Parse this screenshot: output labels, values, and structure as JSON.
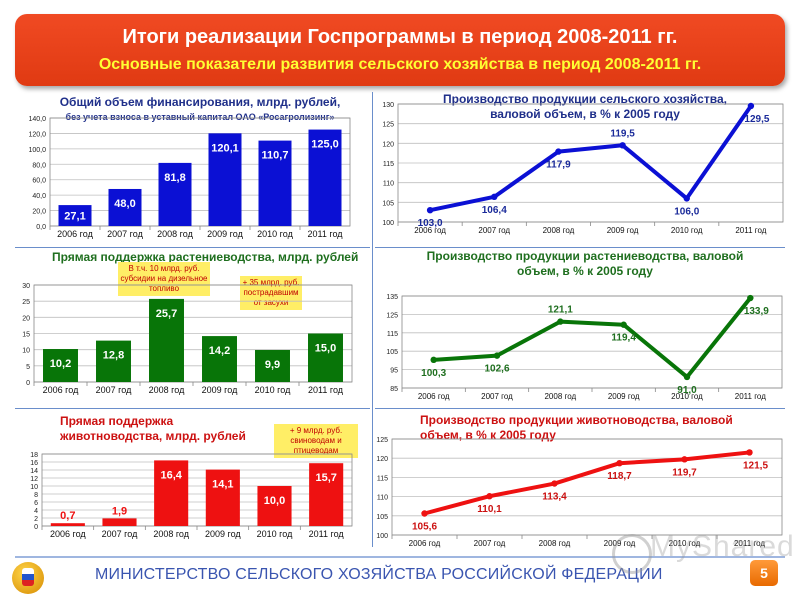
{
  "header": {
    "title": "Итоги реализации Госпрограммы в период 2008-2011 гг.",
    "subtitle": "Основные показатели развития сельского хозяйства в период 2008-2011 гг."
  },
  "footer": {
    "ministry": "МИНИСТЕРСТВО СЕЛЬСКОГО ХОЗЯЙСТВА РОССИЙСКОЙ ФЕДЕРАЦИИ",
    "page_number": "5",
    "watermark": "MyShared"
  },
  "colors": {
    "banner": "#e8431a",
    "blue": "#0b10d4",
    "green": "#087508",
    "red": "#ee1111"
  },
  "panels": {
    "financing": {
      "title": "Общий объем финансирования, млрд. рублей,",
      "subtitle": "без учета взноса в уставный капитал ОАО «Росагролизинг»"
    },
    "agri_output": {
      "title": "Производство продукции сельского хозяйства, валовой объем, в % к 2005 году"
    },
    "crop_support": {
      "title": "Прямая поддержка растениеводства, млрд. рублей",
      "note1": "В т.ч. 10 млрд. руб. субсидии на дизельное топливо",
      "note2": "+ 35 млрд. руб. пострадавшим от засухи"
    },
    "crop_output": {
      "title": "Производство продукции растениеводства, валовой объем, в % к 2005 году"
    },
    "livestock_support": {
      "title": "Прямая поддержка животноводства, млрд. рублей",
      "note1": "+ 9 млрд. руб. свиноводам и птицеводам"
    },
    "livestock_output": {
      "title": "Производство продукции животноводства, валовой объем, в % к 2005 году"
    }
  },
  "chart_data": [
    {
      "id": "financing",
      "type": "bar",
      "categories": [
        "2006 год",
        "2007 год",
        "2008 год",
        "2009 год",
        "2010 год",
        "2011 год"
      ],
      "values": [
        27.1,
        48.0,
        81.8,
        120.1,
        110.7,
        125.0
      ],
      "value_labels": [
        "27,1",
        "48,0",
        "81,8",
        "120,1",
        "110,7",
        "125,0"
      ],
      "ylim": [
        0,
        140
      ],
      "yticks": [
        "0,0",
        "20,0",
        "40,0",
        "60,0",
        "80,0",
        "100,0",
        "120,0",
        "140,0"
      ],
      "color": "#0b10d4",
      "label_color": "#ffffff",
      "grid": true
    },
    {
      "id": "agri_output",
      "type": "line",
      "categories": [
        "2006 год",
        "2007 год",
        "2008 год",
        "2009 год",
        "2010 год",
        "2011 год"
      ],
      "values": [
        103.0,
        106.4,
        117.9,
        119.5,
        106.0,
        129.5
      ],
      "value_labels": [
        "103,0",
        "106,4",
        "117,9",
        "119,5",
        "106,0",
        "129,5"
      ],
      "ylim": [
        100,
        130
      ],
      "yticks": [
        "100",
        "105",
        "110",
        "115",
        "120",
        "125",
        "130"
      ],
      "color": "#0b10d4",
      "label_color": "#1a2a9a",
      "grid": true
    },
    {
      "id": "crop_support",
      "type": "bar",
      "categories": [
        "2006 год",
        "2007 год",
        "2008 год",
        "2009 год",
        "2010 год",
        "2011 год"
      ],
      "values": [
        10.2,
        12.8,
        25.7,
        14.2,
        9.9,
        15.0
      ],
      "value_labels": [
        "10,2",
        "12,8",
        "25,7",
        "14,2",
        "9,9",
        "15,0"
      ],
      "ylim": [
        0,
        30
      ],
      "yticks": [
        "0",
        "5",
        "10",
        "15",
        "20",
        "25",
        "30"
      ],
      "color": "#087508",
      "label_color": "#ffffff",
      "grid": true
    },
    {
      "id": "crop_output",
      "type": "line",
      "categories": [
        "2006 год",
        "2007 год",
        "2008 год",
        "2009 год",
        "2010 год",
        "2011 год"
      ],
      "values": [
        100.3,
        102.6,
        121.1,
        119.4,
        91.0,
        133.9
      ],
      "value_labels": [
        "100,3",
        "102,6",
        "121,1",
        "119,4",
        "91,0",
        "133,9"
      ],
      "ylim": [
        85,
        135
      ],
      "yticks": [
        "85",
        "95",
        "105",
        "115",
        "125",
        "135"
      ],
      "color": "#087508",
      "label_color": "#1f6f1f",
      "grid": true
    },
    {
      "id": "livestock_support",
      "type": "bar",
      "categories": [
        "2006 год",
        "2007 год",
        "2008 год",
        "2009 год",
        "2010 год",
        "2011 год"
      ],
      "values": [
        0.7,
        1.9,
        16.4,
        14.1,
        10.0,
        15.7
      ],
      "value_labels": [
        "0,7",
        "1,9",
        "16,4",
        "14,1",
        "10,0",
        "15,7"
      ],
      "ylim": [
        0,
        18
      ],
      "yticks": [
        "0",
        "2",
        "4",
        "6",
        "8",
        "10",
        "12",
        "14",
        "16",
        "18"
      ],
      "color": "#ee1111",
      "label_color": "#ffffff",
      "grid": true
    },
    {
      "id": "livestock_output",
      "type": "line",
      "categories": [
        "2006 год",
        "2007 год",
        "2008 год",
        "2009 год",
        "2010 год",
        "2011 год"
      ],
      "values": [
        105.6,
        110.1,
        113.4,
        118.7,
        119.7,
        121.5
      ],
      "value_labels": [
        "105,6",
        "110,1",
        "113,4",
        "118,7",
        "119,7",
        "121,5"
      ],
      "ylim": [
        100,
        125
      ],
      "yticks": [
        "100",
        "105",
        "110",
        "115",
        "120",
        "125"
      ],
      "color": "#ee1111",
      "label_color": "#cc1111",
      "grid": true
    }
  ]
}
